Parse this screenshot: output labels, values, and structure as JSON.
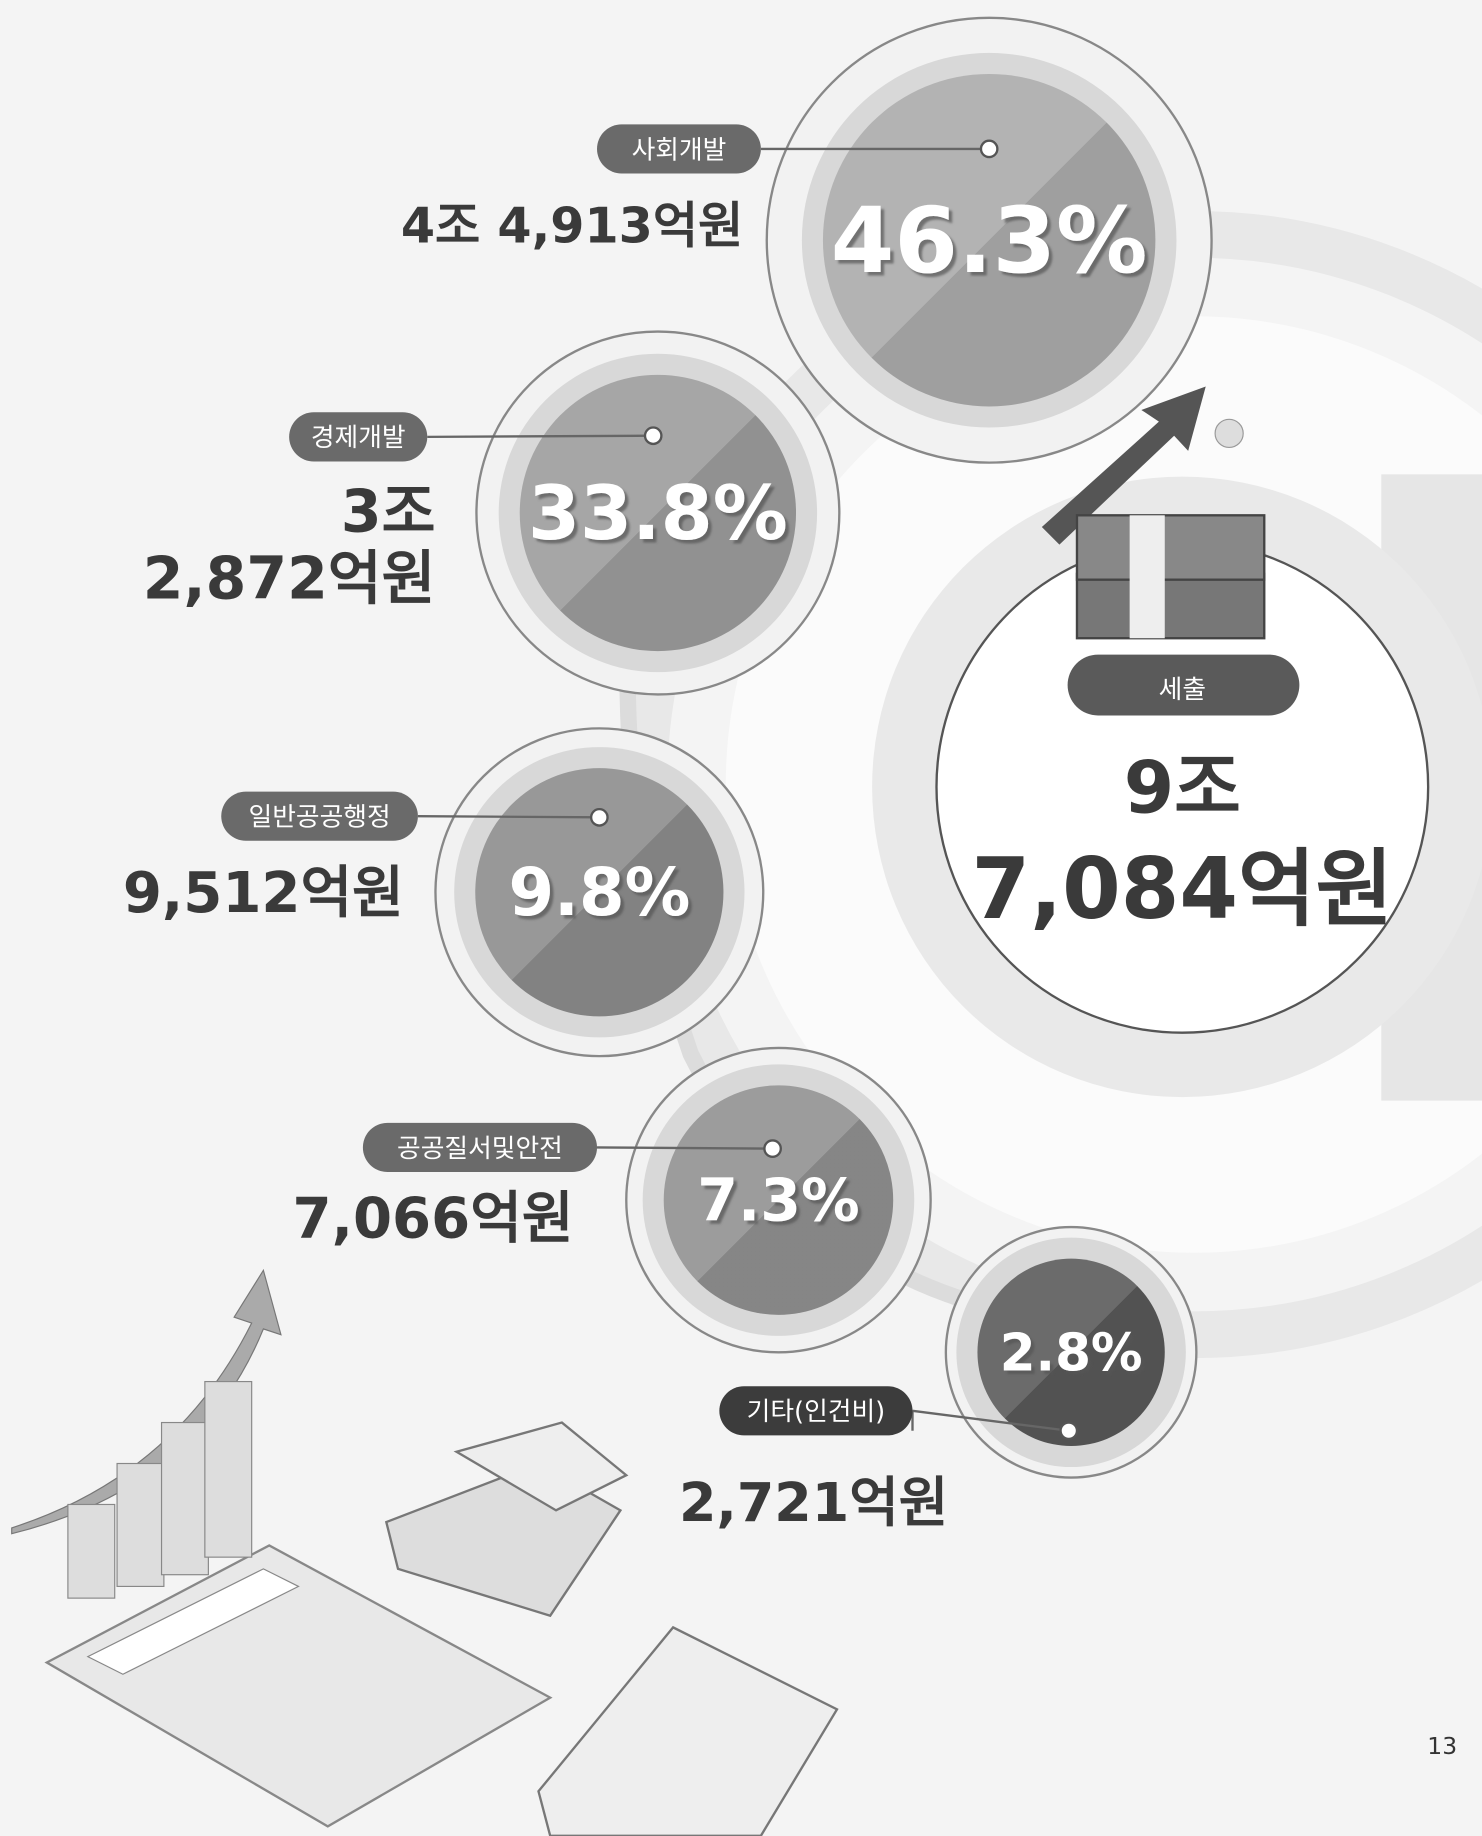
{
  "items": [
    {
      "label": "사회개발",
      "amount": [
        "4조 4,913억원"
      ],
      "percent": "46.3%"
    },
    {
      "label": "경제개발",
      "amount": [
        "3조",
        "2,872억원"
      ],
      "percent": "33.8%"
    },
    {
      "label": "일반공공행정",
      "amount": [
        "9,512억원"
      ],
      "percent": "9.8%"
    },
    {
      "label": "공공질서및안전",
      "amount": [
        "7,066억원"
      ],
      "percent": "7.3%"
    },
    {
      "label": "기타(인건비)",
      "amount": [
        "2,721억원"
      ],
      "percent": "2.8%"
    }
  ],
  "total": {
    "label": "세출",
    "amount": [
      "9조",
      "7,084억원"
    ]
  },
  "page_number": "13"
}
